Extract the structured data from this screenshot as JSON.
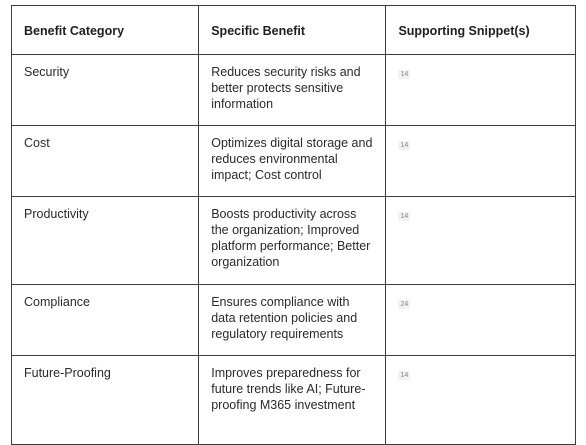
{
  "headers": [
    "Benefit Category",
    "Specific Benefit",
    "Supporting Snippet(s)"
  ],
  "rows": [
    {
      "category": "Security",
      "benefit": "Reduces security risks and better protects sensitive information",
      "snippet": "14"
    },
    {
      "category": "Cost",
      "benefit": "Optimizes digital storage and reduces environmental impact; Cost control",
      "snippet": "14"
    },
    {
      "category": "Productivity",
      "benefit": "Boosts productivity across the organization; Improved platform performance; Better organization",
      "snippet": "14"
    },
    {
      "category": "Compliance",
      "benefit": "Ensures compliance with data retention policies and regulatory requirements",
      "snippet": "24"
    },
    {
      "category": "Future-Proofing",
      "benefit": "Improves preparedness for future trends like AI; Future-proofing M365 investment",
      "snippet": "14"
    }
  ]
}
